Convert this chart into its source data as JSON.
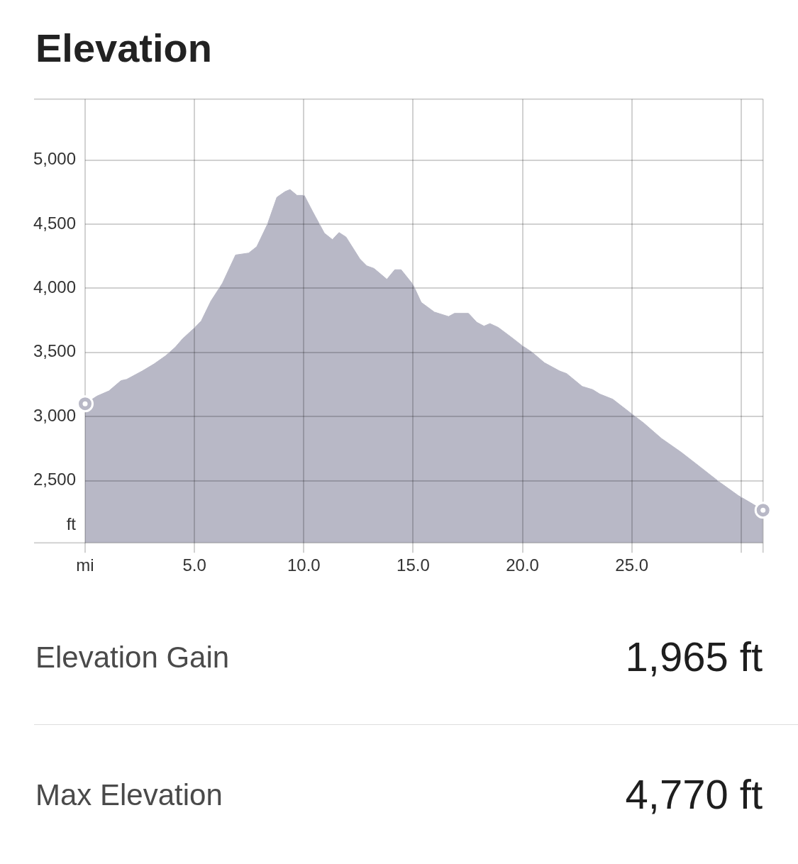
{
  "chart_data": {
    "type": "area",
    "title": "Elevation",
    "xlabel": "mi",
    "ylabel": "ft",
    "x": [
      0,
      0.55,
      1.09,
      1.64,
      1.9,
      2.61,
      3.15,
      3.69,
      4.12,
      4.45,
      4.99,
      5.31,
      5.75,
      6.28,
      6.88,
      7.48,
      7.85,
      8.34,
      8.77,
      9.15,
      9.37,
      9.69,
      10.02,
      10.4,
      10.94,
      11.31,
      11.61,
      11.93,
      12.56,
      12.88,
      13.21,
      13.8,
      14.16,
      14.45,
      14.99,
      15.37,
      15.97,
      16.62,
      16.89,
      17.53,
      17.91,
      18.24,
      18.51,
      18.89,
      19.48,
      19.97,
      20.45,
      21.0,
      21.7,
      22.02,
      22.73,
      23.21,
      23.54,
      24.13,
      24.89,
      25.54,
      26.35,
      27.27,
      28.14,
      29.0,
      29.86,
      30.41,
      31.0
    ],
    "series": [
      {
        "color": "#b8b8c6",
        "values": [
          3100,
          3160,
          3200,
          3280,
          3290,
          3355,
          3410,
          3475,
          3540,
          3605,
          3690,
          3745,
          3900,
          4040,
          4260,
          4275,
          4325,
          4500,
          4710,
          4755,
          4770,
          4725,
          4725,
          4600,
          4430,
          4380,
          4435,
          4400,
          4230,
          4175,
          4155,
          4070,
          4145,
          4145,
          4030,
          3890,
          3815,
          3780,
          3805,
          3805,
          3735,
          3705,
          3725,
          3695,
          3620,
          3555,
          3500,
          3420,
          3355,
          3335,
          3235,
          3210,
          3175,
          3135,
          3035,
          2950,
          2830,
          2720,
          2605,
          2490,
          2385,
          2330,
          2270
        ]
      },
      {
        "type": "scatter",
        "color": "#b8b8c6",
        "marker": "circle",
        "x": [
          0,
          31.0
        ],
        "values": [
          3100,
          2270
        ]
      }
    ],
    "xlim": [
      0,
      31.0
    ],
    "xticks": [
      {
        "value": 0,
        "label": null
      },
      {
        "value": 5,
        "label": "5.0"
      },
      {
        "value": 10,
        "label": "10.0"
      },
      {
        "value": 15,
        "label": "15.0"
      },
      {
        "value": 20,
        "label": "20.0"
      },
      {
        "value": 25,
        "label": "25.0"
      },
      {
        "value": 30,
        "label": null
      }
    ],
    "ylim": [
      2015,
      5475
    ],
    "yticks": [
      {
        "value": 2500,
        "label": "2,500"
      },
      {
        "value": 3000,
        "label": "3,000"
      },
      {
        "value": 3500,
        "label": "3,500"
      },
      {
        "value": 4000,
        "label": "4,000"
      },
      {
        "value": 4500,
        "label": "4,500"
      },
      {
        "value": 5000,
        "label": "5,000"
      }
    ],
    "grid": true,
    "annotations": [
      "Elevation Gain",
      "1,965 ft",
      "Max Elevation",
      "4,770 ft"
    ]
  }
}
